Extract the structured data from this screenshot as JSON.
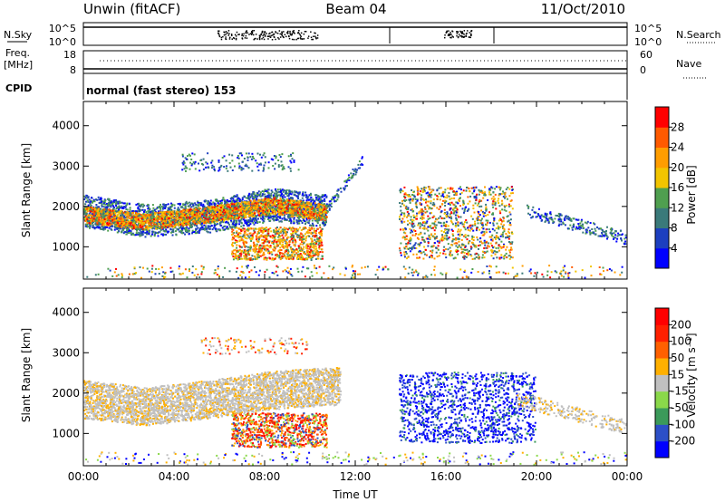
{
  "header": {
    "radar": "Unwin (fitACF)",
    "beam": "Beam 04",
    "date": "11/Oct/2010"
  },
  "status_panels": {
    "nsky_label": "N.Sky",
    "nsearch_label": "N.Search",
    "nsky_ticks": [
      "10^5",
      "10^0"
    ],
    "nsearch_ticks": [
      "10^5",
      "10^0"
    ],
    "freq_label": "Freq.",
    "freq_unit": "[MHz]",
    "freq_ticks": [
      "18",
      "8"
    ],
    "nave_label": "Nave",
    "nave_ticks": [
      "60",
      "0"
    ],
    "cpid_label": "CPID",
    "cpid_value": "normal (fast stereo) 153"
  },
  "chart_data": [
    {
      "type": "heatmap",
      "parameter": "power",
      "ylabel": "Slant Range [km]",
      "ylim": [
        200,
        4600
      ],
      "yticks": [
        "4000",
        "3000",
        "2000",
        "1000"
      ],
      "colorbar": {
        "label": "Power [dB]",
        "ticks": [
          "28",
          "24",
          "20",
          "16",
          "12",
          "8",
          "4"
        ],
        "colors": [
          "#0000ff",
          "#1c3fbf",
          "#3a7a7a",
          "#4f9f4f",
          "#f2c400",
          "#ff9d00",
          "#ff5a00",
          "#ff0000"
        ]
      }
    },
    {
      "type": "heatmap",
      "parameter": "velocity",
      "ylabel": "Slant Range [km]",
      "ylim": [
        200,
        4600
      ],
      "yticks": [
        "4000",
        "3000",
        "2000",
        "1000"
      ],
      "xlabel": "Time UT",
      "xticks": [
        "00:00",
        "04:00",
        "08:00",
        "12:00",
        "16:00",
        "20:00",
        "00:00"
      ],
      "colorbar": {
        "label": "Velocity [m s⁻¹]",
        "ticks": [
          "200",
          "100",
          "50",
          "15",
          "-15",
          "-50",
          "-100",
          "-200"
        ],
        "colors": [
          "#0000ff",
          "#2c4fc7",
          "#3b9a5a",
          "#8ad84a",
          "#c0c0c0",
          "#ffb000",
          "#ff6000",
          "#ff2000",
          "#ff0000"
        ]
      }
    }
  ]
}
